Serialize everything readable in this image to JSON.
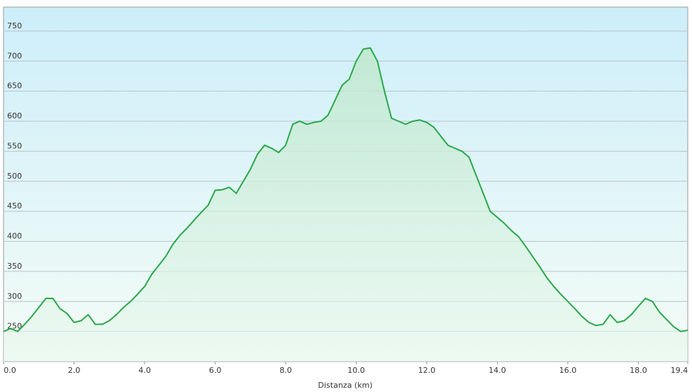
{
  "chart_data": {
    "type": "area",
    "x_label": "Distanza  (km)",
    "x": [
      0.0,
      0.2,
      0.4,
      0.6,
      0.8,
      1.0,
      1.2,
      1.4,
      1.6,
      1.8,
      2.0,
      2.2,
      2.4,
      2.6,
      2.8,
      3.0,
      3.2,
      3.4,
      3.6,
      3.8,
      4.0,
      4.2,
      4.4,
      4.6,
      4.8,
      5.0,
      5.2,
      5.4,
      5.6,
      5.8,
      6.0,
      6.2,
      6.4,
      6.6,
      6.8,
      7.0,
      7.2,
      7.4,
      7.6,
      7.8,
      8.0,
      8.2,
      8.4,
      8.6,
      8.8,
      9.0,
      9.2,
      9.4,
      9.6,
      9.8,
      10.0,
      10.2,
      10.4,
      10.6,
      10.8,
      11.0,
      11.2,
      11.4,
      11.6,
      11.8,
      12.0,
      12.2,
      12.4,
      12.6,
      12.8,
      13.0,
      13.2,
      13.4,
      13.6,
      13.8,
      14.0,
      14.2,
      14.4,
      14.6,
      14.8,
      15.0,
      15.2,
      15.4,
      15.6,
      15.8,
      16.0,
      16.2,
      16.4,
      16.6,
      16.8,
      17.0,
      17.2,
      17.4,
      17.6,
      17.8,
      18.0,
      18.2,
      18.4,
      18.6,
      18.8,
      19.0,
      19.2,
      19.4
    ],
    "values": [
      250,
      255,
      250,
      262,
      275,
      290,
      305,
      305,
      288,
      280,
      265,
      268,
      278,
      262,
      262,
      268,
      278,
      290,
      300,
      312,
      325,
      345,
      360,
      375,
      395,
      410,
      422,
      435,
      448,
      460,
      485,
      486,
      490,
      480,
      500,
      520,
      545,
      560,
      555,
      548,
      560,
      595,
      600,
      595,
      598,
      600,
      610,
      635,
      660,
      670,
      700,
      720,
      722,
      700,
      650,
      605,
      600,
      595,
      600,
      602,
      598,
      590,
      575,
      560,
      555,
      550,
      540,
      510,
      480,
      450,
      440,
      430,
      418,
      408,
      392,
      375,
      358,
      340,
      325,
      312,
      300,
      288,
      275,
      265,
      260,
      262,
      278,
      265,
      268,
      278,
      292,
      305,
      300,
      282,
      270,
      258,
      250,
      252
    ],
    "color": "#2aa84a",
    "xlim": [
      0,
      19.4
    ],
    "ylim": [
      200,
      790
    ],
    "xticks": [
      {
        "value": 0,
        "label": "0.0"
      },
      {
        "value": 2,
        "label": "2.0"
      },
      {
        "value": 4,
        "label": "4.0"
      },
      {
        "value": 6,
        "label": "6.0"
      },
      {
        "value": 8,
        "label": "8.0"
      },
      {
        "value": 10,
        "label": "10.0"
      },
      {
        "value": 12,
        "label": "12.0"
      },
      {
        "value": 14,
        "label": "14.0"
      },
      {
        "value": 16,
        "label": "16.0"
      },
      {
        "value": 18,
        "label": "18.0"
      },
      {
        "value": 19.4,
        "label": "19.4"
      }
    ],
    "yticks": [
      250,
      300,
      350,
      400,
      450,
      500,
      550,
      600,
      650,
      700,
      750
    ],
    "grid": true
  }
}
